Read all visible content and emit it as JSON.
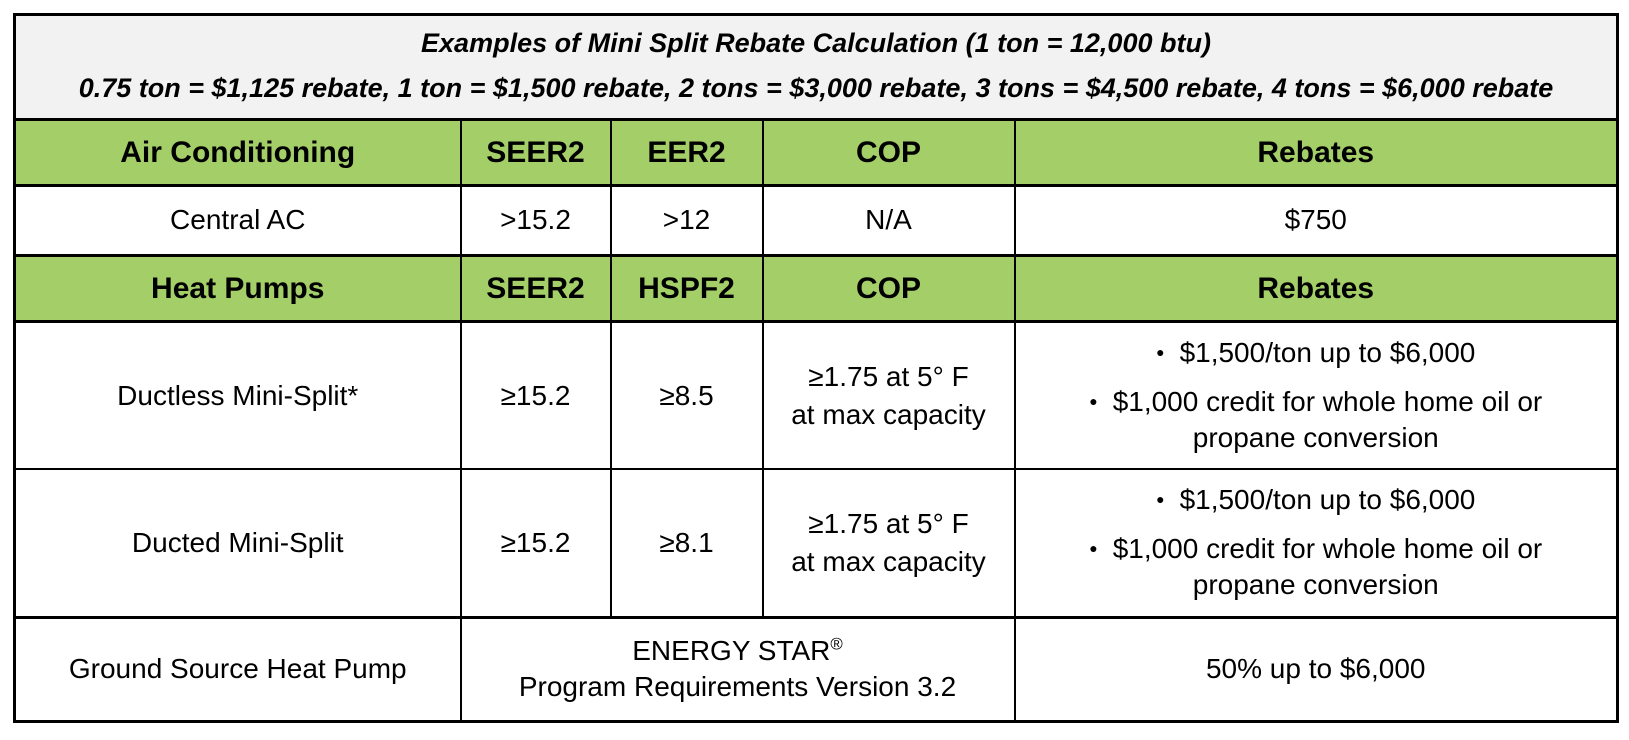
{
  "title_block": {
    "line1": "Examples of Mini Split Rebate Calculation (1 ton = 12,000 btu)",
    "line2": "0.75 ton = $1,125 rebate, 1 ton = $1,500 rebate, 2 tons = $3,000 rebate, 3 tons = $4,500 rebate, 4 tons = $6,000 rebate"
  },
  "colors": {
    "header_bg": "#F2F2F2",
    "green_bg": "#A4CE67",
    "border": "#000000",
    "text": "#000000"
  },
  "ac_section": {
    "headers": {
      "category": "Air Conditioning",
      "col2": "SEER2",
      "col3": "EER2",
      "col4": "COP",
      "col5": "Rebates"
    },
    "rows": [
      {
        "name": "Central AC",
        "seer2": ">15.2",
        "eer2": ">12",
        "cop": "N/A",
        "rebate": "$750"
      }
    ]
  },
  "hp_section": {
    "headers": {
      "category": "Heat Pumps",
      "col2": "SEER2",
      "col3": "HSPF2",
      "col4": "COP",
      "col5": "Rebates"
    },
    "rows": [
      {
        "name": "Ductless Mini-Split*",
        "seer2": "≥15.2",
        "hspf2": "≥8.5",
        "cop_line1": "≥1.75 at 5° F",
        "cop_line2": "at max capacity",
        "rebate_bullets": [
          "$1,500/ton up to $6,000",
          "$1,000 credit for whole home oil or propane conversion"
        ]
      },
      {
        "name": "Ducted Mini-Split",
        "seer2": "≥15.2",
        "hspf2": "≥8.1",
        "cop_line1": "≥1.75 at 5° F",
        "cop_line2": "at max capacity",
        "rebate_bullets": [
          "$1,500/ton up to $6,000",
          "$1,000 credit for whole home oil or propane conversion"
        ]
      }
    ]
  },
  "ground_source": {
    "name": "Ground Source Heat Pump",
    "requirement_brand": "ENERGY STAR",
    "requirement_reg": "®",
    "requirement_line2": "Program Requirements Version 3.2",
    "rebate": "50% up to $6,000"
  }
}
